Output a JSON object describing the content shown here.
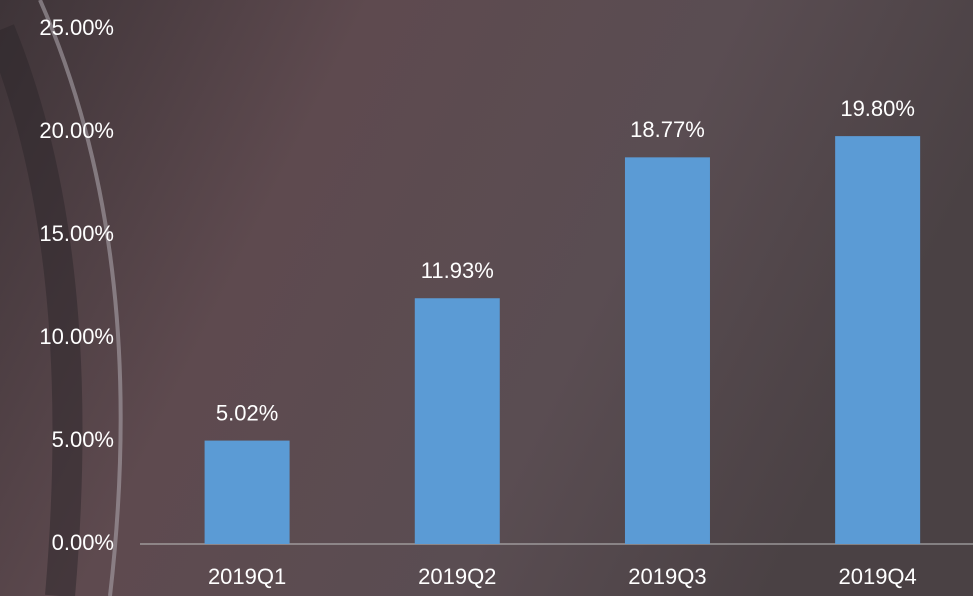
{
  "chart_data": {
    "type": "bar",
    "categories": [
      "2019Q1",
      "2019Q2",
      "2019Q3",
      "2019Q4"
    ],
    "values": [
      5.02,
      11.93,
      18.77,
      19.8
    ],
    "value_labels": [
      "5.02%",
      "11.93%",
      "18.77%",
      "19.80%"
    ],
    "color": "#5b9bd5",
    "ylim": [
      0,
      25
    ],
    "yticks": [
      {
        "value": 0,
        "label": "0.00%"
      },
      {
        "value": 5,
        "label": "5.00%"
      },
      {
        "value": 10,
        "label": "10.00%"
      },
      {
        "value": 15,
        "label": "15.00%"
      },
      {
        "value": 20,
        "label": "20.00%"
      },
      {
        "value": 25,
        "label": "25.00%"
      }
    ],
    "grid": false
  }
}
